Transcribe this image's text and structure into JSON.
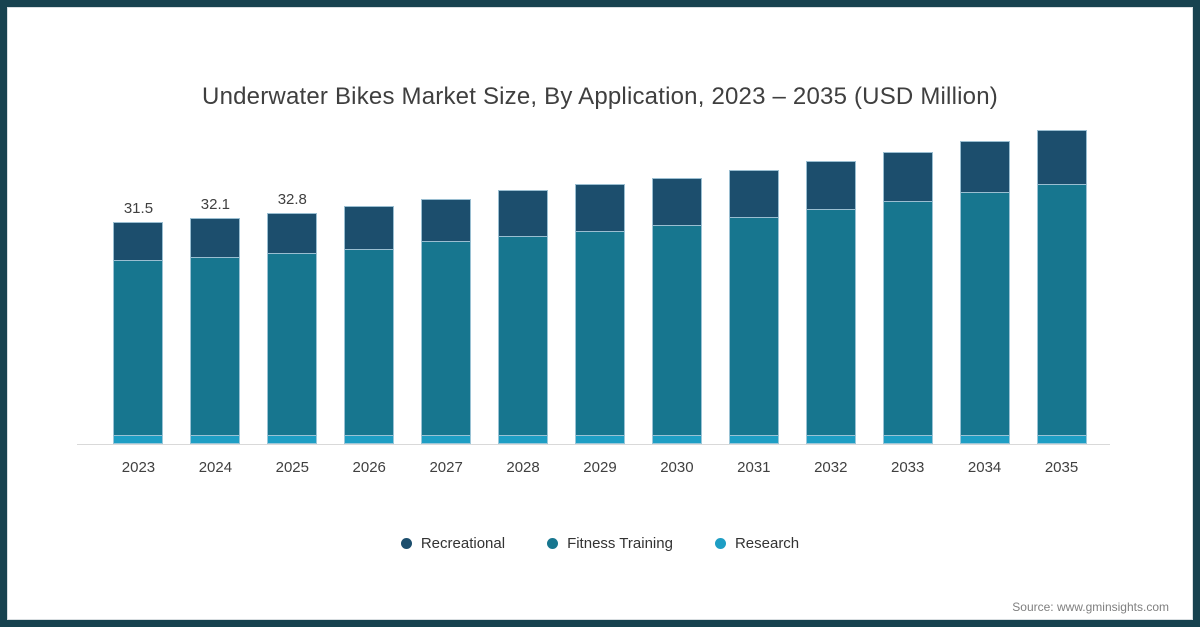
{
  "chart": {
    "title": "Underwater Bikes Market Size, By Application, 2023 – 2035 (USD Million)"
  },
  "chart_data": {
    "type": "bar",
    "stacked": true,
    "title": "Underwater Bikes Market Size, By Application, 2023 – 2035 (USD Million)",
    "xlabel": "",
    "ylabel": "",
    "ylim": [
      0,
      45.4
    ],
    "grid": false,
    "legend_position": "bottom",
    "categories": [
      "2023",
      "2024",
      "2025",
      "2026",
      "2027",
      "2028",
      "2029",
      "2030",
      "2031",
      "2032",
      "2033",
      "2034",
      "2035"
    ],
    "series": [
      {
        "name": "Recreational",
        "color": "#1c4e6d",
        "values": [
          5.6,
          5.7,
          5.8,
          6.2,
          6.2,
          6.7,
          6.8,
          6.7,
          6.8,
          7.0,
          7.2,
          7.4,
          7.7
        ]
      },
      {
        "name": "Fitness Training",
        "color": "#17768f",
        "values": [
          24.8,
          25.3,
          25.9,
          26.4,
          27.5,
          28.2,
          29.0,
          29.9,
          31.0,
          32.1,
          33.2,
          34.5,
          35.7
        ]
      },
      {
        "name": "Research",
        "color": "#1e9ec4",
        "values": [
          1.1,
          1.1,
          1.1,
          1.1,
          1.1,
          1.1,
          1.1,
          1.1,
          1.1,
          1.1,
          1.1,
          1.1,
          1.1
        ]
      }
    ],
    "totals": [
      31.5,
      32.1,
      32.8,
      33.7,
      34.8,
      36.0,
      36.9,
      37.7,
      38.9,
      40.2,
      41.5,
      43.0,
      44.5
    ],
    "bar_labels": [
      "31.5",
      "32.1",
      "32.8",
      "",
      "",
      "",
      "",
      "",
      "",
      "",
      "",
      "",
      ""
    ]
  },
  "colors": {
    "frame_border": "#17424f",
    "title_text": "#3f3f3f",
    "axis_line": "#d9d9d9",
    "segment_stroke": "#a8cbdb",
    "source_text": "#7f7f7f"
  },
  "source": {
    "text": "Source: www.gminsights.com"
  }
}
